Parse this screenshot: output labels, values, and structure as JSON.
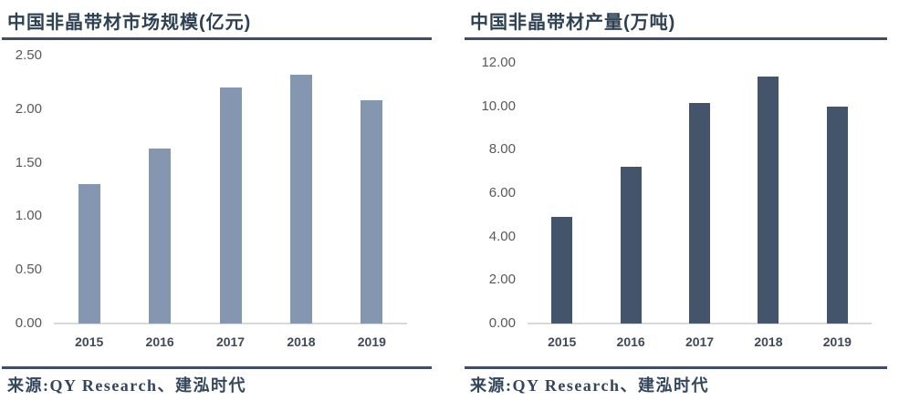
{
  "theme": {
    "background": "#FFFFFF",
    "title_color": "#2E4154",
    "rule_color": "#3F4E66",
    "y_axis_label_color": "#595959",
    "x_axis_label_color": "#3F4959",
    "axis_line_color": "#D9D9D9",
    "source_text_color": "#33465C"
  },
  "chart_data": [
    {
      "type": "bar",
      "title": "中国非晶带材市场规模(亿元)",
      "categories": [
        "2015",
        "2016",
        "2017",
        "2018",
        "2019"
      ],
      "values": [
        1.3,
        1.63,
        2.2,
        2.32,
        2.08
      ],
      "xlabel": "",
      "ylabel": "",
      "ylim": [
        0,
        2.5
      ],
      "y_tick_step": 0.5,
      "y_tick_labels": [
        "2.50",
        "2.00",
        "1.50",
        "1.00",
        "0.50",
        "0.00"
      ],
      "bar_color": "#8496B0",
      "grid": false,
      "legend_position": "none",
      "source": "来源:QY Research、建泓时代"
    },
    {
      "type": "bar",
      "title": "中国非晶带材产量(万吨)",
      "categories": [
        "2015",
        "2016",
        "2017",
        "2018",
        "2019"
      ],
      "values": [
        4.92,
        7.2,
        10.15,
        11.35,
        10.0
      ],
      "xlabel": "",
      "ylabel": "",
      "ylim": [
        0,
        12
      ],
      "y_tick_step": 2,
      "y_tick_labels": [
        "12.00",
        "10.00",
        "8.00",
        "6.00",
        "4.00",
        "2.00",
        "0.00"
      ],
      "bar_color": "#44546A",
      "grid": false,
      "legend_position": "none",
      "source": "来源:QY Research、建泓时代"
    }
  ]
}
